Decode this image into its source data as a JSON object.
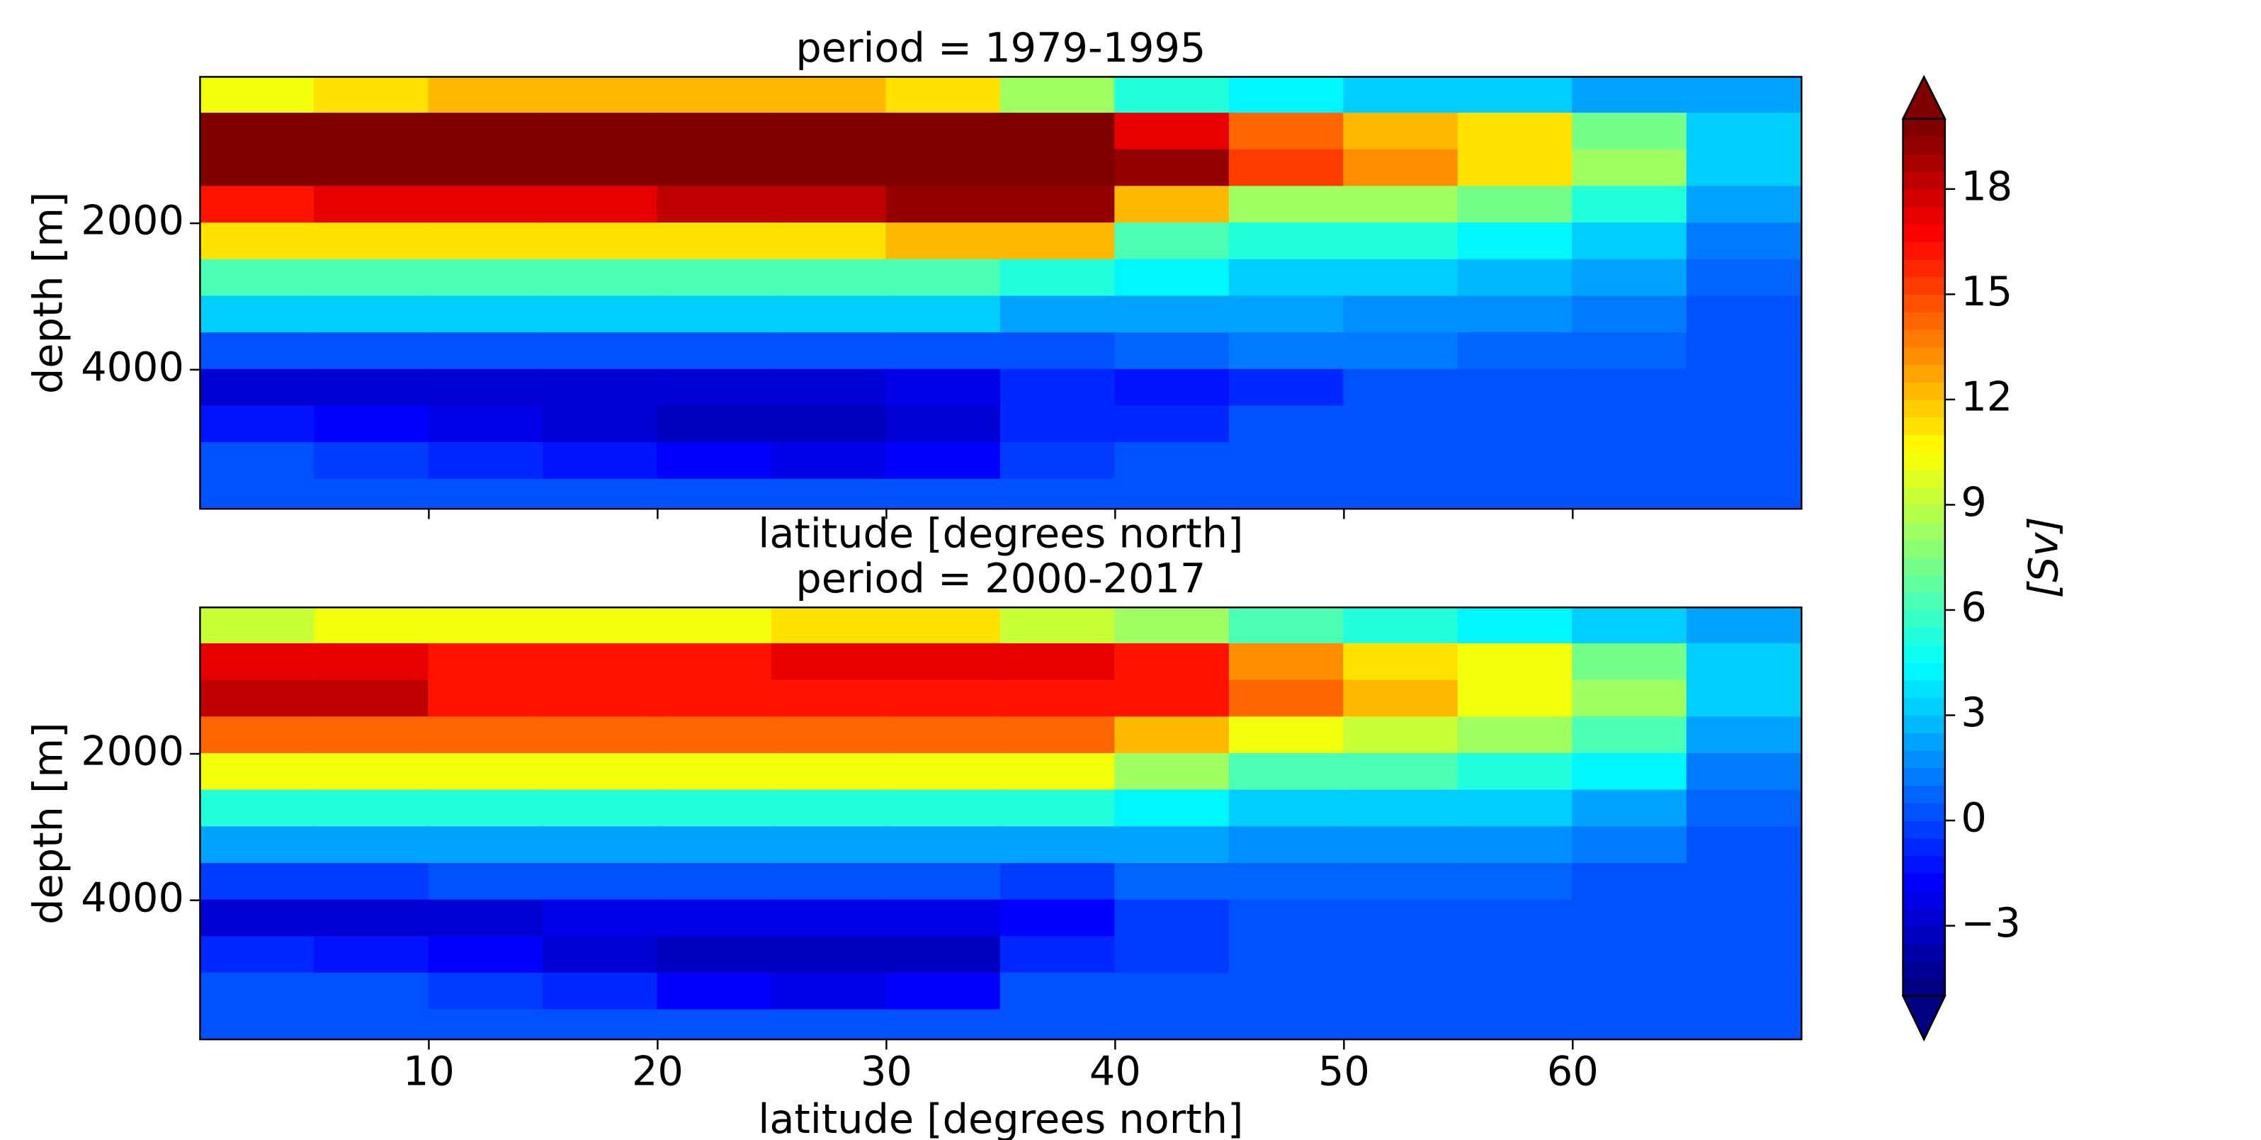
{
  "chart_data": {
    "type": "contourf",
    "colormap": "jet",
    "clim": [
      -5,
      20
    ],
    "level_step": 0.5,
    "xlim": [
      0,
      70
    ],
    "xticks": [
      10,
      20,
      30,
      40,
      50,
      60
    ],
    "ylim": [
      5900,
      0
    ],
    "yticks": [
      2000,
      4000
    ],
    "x": [
      2.5,
      7.5,
      12.5,
      17.5,
      22.5,
      27.5,
      32.5,
      37.5,
      42.5,
      47.5,
      52.5,
      57.5,
      62.5,
      67.5
    ],
    "y": [
      250,
      750,
      1250,
      1750,
      2250,
      2750,
      3250,
      3750,
      4250,
      4750,
      5250,
      5750
    ],
    "panels": [
      {
        "title": "period = 1979-1995",
        "xlabel": "latitude [degrees north]",
        "ylabel": "depth [m]",
        "show_xticklabels": false,
        "z": [
          [
            10,
            11,
            12,
            12,
            12,
            12,
            11,
            8,
            5,
            4,
            3,
            3,
            2,
            2
          ],
          [
            20,
            20,
            20,
            20,
            20,
            20,
            20,
            20,
            17,
            14,
            12,
            11,
            7,
            3
          ],
          [
            20,
            20,
            20,
            20,
            20,
            20,
            20,
            20,
            19,
            15,
            13,
            11,
            8,
            3
          ],
          [
            16,
            17,
            17,
            17,
            18,
            18,
            19,
            19,
            12,
            8,
            8,
            7,
            5,
            2
          ],
          [
            11,
            11,
            11,
            11,
            11,
            11,
            12,
            12,
            6,
            5,
            5,
            4,
            3,
            1
          ],
          [
            6,
            6,
            6,
            6,
            6,
            6,
            6,
            5,
            4,
            3,
            3,
            2.5,
            2,
            0.5
          ],
          [
            3,
            3,
            3,
            3,
            3,
            3,
            3,
            2,
            2,
            2,
            1.5,
            1.5,
            1,
            0
          ],
          [
            0,
            0,
            0,
            0,
            0,
            0,
            0,
            0,
            0.5,
            1,
            1,
            0.5,
            0.5,
            0
          ],
          [
            -3,
            -3,
            -3,
            -3,
            -3,
            -3,
            -2.5,
            -1,
            -1.5,
            -1,
            0,
            0,
            0,
            0
          ],
          [
            -1.5,
            -2,
            -2.5,
            -3,
            -3.5,
            -3.5,
            -3,
            -1,
            -1,
            0,
            0,
            0,
            0,
            0
          ],
          [
            0,
            -0.5,
            -1,
            -1.5,
            -2,
            -2.5,
            -2,
            -0.5,
            0,
            0,
            0,
            0,
            0,
            0
          ],
          [
            0,
            0,
            0,
            0,
            0,
            0,
            0,
            0,
            0,
            0,
            0,
            0,
            0,
            0
          ]
        ]
      },
      {
        "title": "period = 2000-2017",
        "xlabel": "latitude [degrees north]",
        "ylabel": "depth [m]",
        "show_xticklabels": true,
        "z": [
          [
            9,
            10,
            10,
            10,
            10,
            11,
            11,
            9,
            8,
            6,
            5,
            4,
            3,
            2
          ],
          [
            17,
            17,
            16,
            16,
            16,
            17,
            17,
            17,
            16,
            13,
            11,
            10,
            7,
            3
          ],
          [
            18,
            18,
            16,
            16,
            16,
            16,
            16,
            16,
            16,
            14,
            12,
            10,
            8,
            3
          ],
          [
            14,
            14,
            14,
            14,
            14,
            14,
            14,
            14,
            12,
            10,
            9,
            8,
            6,
            2
          ],
          [
            10,
            10,
            10,
            10,
            10,
            10,
            10,
            10,
            8,
            6,
            6,
            5,
            4,
            1
          ],
          [
            5,
            5,
            5,
            5,
            5,
            5,
            5,
            5,
            4,
            3,
            3,
            3,
            2,
            0.5
          ],
          [
            2,
            2,
            2,
            2,
            2,
            2,
            2,
            2,
            2,
            1.5,
            1.5,
            1.5,
            1,
            0
          ],
          [
            -0.5,
            -0.5,
            0,
            0,
            0,
            0,
            0,
            -0.5,
            0.5,
            0.5,
            0.5,
            0.5,
            0,
            0
          ],
          [
            -3,
            -3,
            -3,
            -2.5,
            -2.5,
            -2.5,
            -2.5,
            -2,
            -0.5,
            0,
            0,
            0,
            0,
            0
          ],
          [
            -1,
            -1.5,
            -2,
            -3,
            -3.5,
            -3.5,
            -3.5,
            -1,
            -0.5,
            0,
            0,
            0,
            0,
            0
          ],
          [
            0,
            0,
            -0.5,
            -1,
            -2,
            -2.5,
            -2,
            0,
            0,
            0,
            0,
            0,
            0,
            0
          ],
          [
            0,
            0,
            0,
            0,
            0,
            0,
            0,
            0,
            0,
            0,
            0,
            0,
            0,
            0
          ]
        ]
      }
    ],
    "colorbar": {
      "label": "[Sv]",
      "extend": "both",
      "ticks": [
        {
          "value": -3,
          "label": "−3"
        },
        0,
        3,
        6,
        9,
        12,
        15,
        18
      ]
    }
  }
}
